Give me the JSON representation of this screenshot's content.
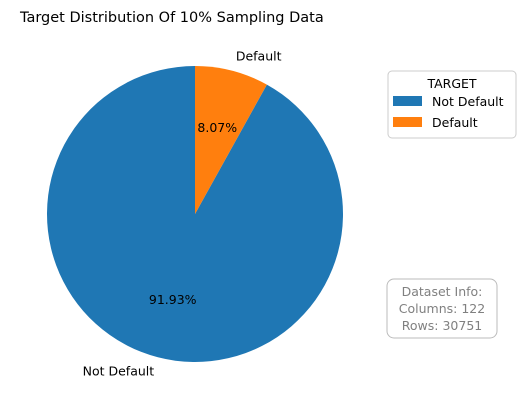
{
  "chart_data": {
    "type": "pie",
    "title": "Target Distribution Of 10% Sampling Data",
    "slices": [
      {
        "label": "Not Default",
        "value": 91.93,
        "pct_label": "91.93%",
        "color": "#1f77b4"
      },
      {
        "label": "Default",
        "value": 8.07,
        "pct_label": "8.07%",
        "color": "#ff7f0e"
      }
    ],
    "start_angle_deg": 90,
    "direction": "counterclockwise",
    "legend": {
      "title": "TARGET",
      "placement": "right",
      "entries": [
        "Not Default",
        "Default"
      ]
    },
    "info_box": {
      "lines": [
        "Dataset Info:",
        "Columns: 122",
        "Rows: 30751"
      ]
    }
  }
}
